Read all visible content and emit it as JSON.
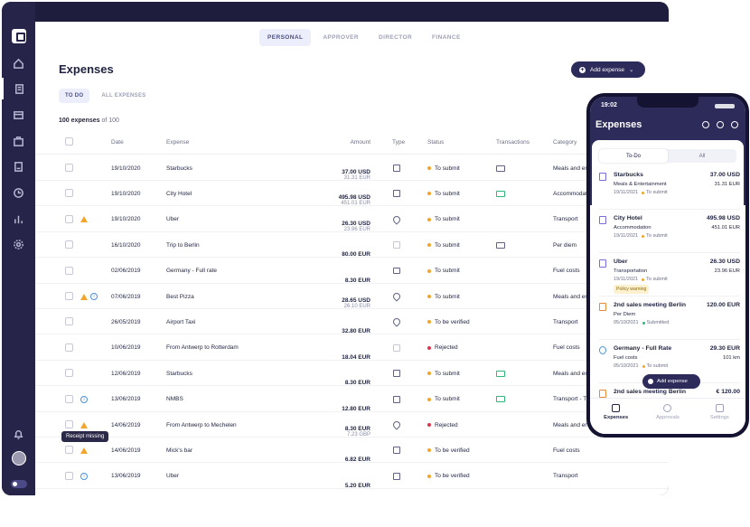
{
  "header": {
    "tabs": [
      {
        "label": "PERSONAL",
        "active": true
      },
      {
        "label": "APPROVER",
        "active": false
      },
      {
        "label": "DIRECTOR",
        "active": false
      },
      {
        "label": "FINANCE",
        "active": false
      }
    ]
  },
  "sidebar": {
    "icons": [
      "home-icon",
      "expenses-icon",
      "card-icon",
      "briefcase-icon",
      "report-icon",
      "clock-icon",
      "chart-icon",
      "gear-icon",
      "bell-icon"
    ]
  },
  "page": {
    "title": "Expenses",
    "add_button": "Add expense",
    "subtabs": [
      "TO DO",
      "ALL EXPENSES"
    ],
    "count_bold": "100 expenses",
    "count_rest": " of 100"
  },
  "table": {
    "headers": {
      "date": "Date",
      "expense": "Expense",
      "amount": "Amount",
      "type": "Type",
      "status": "Status",
      "transactions": "Transactions",
      "category": "Category"
    },
    "rows": [
      {
        "date": "19/10/2020",
        "expense": "Starbucks",
        "amount": "37.00 USD",
        "amount2": "31.31 EUR",
        "type": "receipt",
        "status": "To submit",
        "status_color": "#f2a52b",
        "tx": "card",
        "category": "Meals and entertainment",
        "warn": false,
        "info": false
      },
      {
        "date": "19/10/2020",
        "expense": "City Hotel",
        "amount": "495.98 USD",
        "amount2": "451.01 EUR",
        "type": "receipt",
        "status": "To submit",
        "status_color": "#f2a52b",
        "tx": "card-green",
        "category": "Accommodation",
        "warn": false,
        "info": false
      },
      {
        "date": "19/10/2020",
        "expense": "Uber",
        "amount": "26.30 USD",
        "amount2": "23.96 EUR",
        "type": "pin",
        "status": "To submit",
        "status_color": "#f2a52b",
        "tx": "",
        "category": "Transport",
        "warn": true,
        "info": false
      },
      {
        "date": "16/10/2020",
        "expense": "Trip to Berlin",
        "amount": "80.00  EUR",
        "amount2": "",
        "type": "dim",
        "status": "To submit",
        "status_color": "#f2a52b",
        "tx": "card",
        "category": "Per diem",
        "warn": false,
        "info": false
      },
      {
        "date": "02/06/2019",
        "expense": "Germany - Full rate",
        "amount": "8.30  EUR",
        "amount2": "",
        "type": "brief",
        "status": "To submit",
        "status_color": "#f2a52b",
        "tx": "",
        "category": "Fuel costs",
        "warn": false,
        "info": false
      },
      {
        "date": "07/06/2019",
        "expense": "Best Pizza",
        "amount": "28.65 USD",
        "amount2": "26.10 EUR",
        "type": "pin",
        "status": "To submit",
        "status_color": "#f2a52b",
        "tx": "",
        "category": "Meals and entertainment",
        "warn": true,
        "info": true
      },
      {
        "date": "26/05/2019",
        "expense": "Airport Taxi",
        "amount": "32.80  EUR",
        "amount2": "",
        "type": "pin",
        "status": "To be verified",
        "status_color": "#f2a52b",
        "tx": "",
        "category": "Transport",
        "warn": false,
        "info": false
      },
      {
        "date": "10/06/2019",
        "expense": "From Antwerp to Rotterdam",
        "amount": "18.04  EUR",
        "amount2": "",
        "type": "dim",
        "status": "Rejected",
        "status_color": "#d9354b",
        "tx": "",
        "category": "Fuel costs",
        "warn": false,
        "info": false
      },
      {
        "date": "12/06/2019",
        "expense": "Starbucks",
        "amount": "8.30  EUR",
        "amount2": "",
        "type": "receipt",
        "status": "To submit",
        "status_color": "#f2a52b",
        "tx": "card-green",
        "category": "Meals and entertainment",
        "warn": false,
        "info": false
      },
      {
        "date": "13/06/2019",
        "expense": "NMBS",
        "amount": "12.80  EUR",
        "amount2": "",
        "type": "receipt",
        "status": "To submit",
        "status_color": "#f2a52b",
        "tx": "card-green",
        "category": "Transport - Train",
        "warn": false,
        "info": true
      },
      {
        "date": "14/06/2019",
        "expense": "From Antwerp to Mechelen",
        "amount": "8.30 EUR",
        "amount2": "7.23 GBP",
        "type": "pin",
        "status": "Rejected",
        "status_color": "#d9354b",
        "tx": "",
        "category": "Meals and entertainment",
        "warn": true,
        "info": false
      },
      {
        "date": "14/06/2019",
        "expense": "Mick's bar",
        "amount": "6.82  EUR",
        "amount2": "",
        "type": "receipt",
        "status": "To be verified",
        "status_color": "#f2a52b",
        "tx": "",
        "category": "Fuel costs",
        "warn": true,
        "info": false
      },
      {
        "date": "13/06/2019",
        "expense": "Uber",
        "amount": "5.20  EUR",
        "amount2": "",
        "type": "receipt",
        "status": "To be verified",
        "status_color": "#f2a52b",
        "tx": "",
        "category": "Transport",
        "warn": false,
        "info": true
      }
    ]
  },
  "tooltip": "Receipt missing",
  "phone": {
    "time": "19:02",
    "title": "Expenses",
    "tabs": [
      "To-Do",
      "All"
    ],
    "items": [
      {
        "name": "Starbucks",
        "cat": "Meals & Entertainment",
        "date": "19/11/2021",
        "status": "To submit",
        "amt": "37.00 USD",
        "amt2": "31.31 EUR",
        "icon": "receipt",
        "badge": ""
      },
      {
        "name": "City Hotel",
        "cat": "Accommodation",
        "date": "19/11/2021",
        "status": "To submit",
        "amt": "495.98 USD",
        "amt2": "451.01 EUR",
        "icon": "receipt",
        "badge": ""
      },
      {
        "name": "Uber",
        "cat": "Transportation",
        "date": "19/11/2021",
        "status": "To submit",
        "amt": "26.30 USD",
        "amt2": "23.96 EUR",
        "icon": "receipt",
        "badge": "Policy warning"
      },
      {
        "name": "2nd sales meeting Berlin",
        "cat": "Per Diem",
        "date": "05/10/2021",
        "status": "Submitted",
        "amt": "120.00 EUR",
        "amt2": "",
        "icon": "bag",
        "badge": ""
      },
      {
        "name": "Germany - Full Rate",
        "cat": "Fuel costs",
        "date": "05/10/2021",
        "status": "To submit",
        "amt": "29.30 EUR",
        "amt2": "101 km",
        "icon": "pin",
        "badge": ""
      },
      {
        "name": "2nd sales meeting Berlin",
        "cat": "",
        "date": "",
        "status": "",
        "amt": "€ 120.00",
        "amt2": "",
        "icon": "bag",
        "badge": ""
      }
    ],
    "fab": "Add expense",
    "nav": [
      "Expenses",
      "Approvals",
      "Settings"
    ]
  }
}
